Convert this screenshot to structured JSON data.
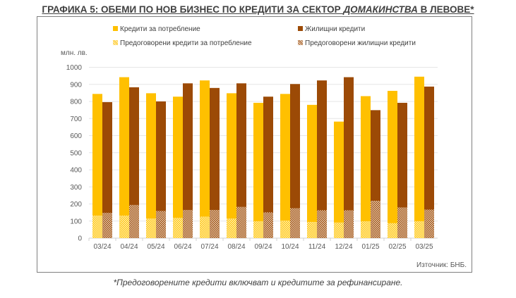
{
  "title_part1": "ГРАФИКА 5: ОБЕМИ ПО НОВ БИЗНЕС ПО КРЕДИТИ ЗА СЕКТОР ",
  "title_italic": "ДОМАКИНСТВА",
  "title_part2": " В ЛЕВОВЕ*",
  "unit": "млн. лв.",
  "source": "Източник: БНБ.",
  "footnote": "*Предоговорените кредити включват и кредитите за рефинансиране.",
  "colors": {
    "consumer": "#FFC000",
    "housing": "#9C4A06",
    "consumer_refin": "#FFE07A",
    "housing_refin": "#C99A72"
  },
  "chart_data": {
    "type": "bar",
    "title": "ОБЕМИ ПО НОВ БИЗНЕС ПО КРЕДИТИ ЗА СЕКТОР ДОМАКИНСТВА В ЛЕВОВЕ",
    "ylabel": "млн. лв.",
    "ylim": [
      0,
      1000
    ],
    "yticks": [
      "0",
      "100",
      "200",
      "300",
      "400",
      "500",
      "600",
      "700",
      "800",
      "900",
      "1000"
    ],
    "grid": true,
    "legend_position": "top",
    "categories": [
      "03/24",
      "04/24",
      "05/24",
      "06/24",
      "07/24",
      "08/24",
      "09/24",
      "10/24",
      "11/24",
      "12/24",
      "01/25",
      "02/25",
      "03/25"
    ],
    "series": [
      {
        "name": "Кредити за потребление",
        "values": [
          844,
          942,
          848,
          828,
          923,
          848,
          792,
          844,
          780,
          682,
          831,
          862,
          945
        ]
      },
      {
        "name": "Жилищни кредити",
        "values": [
          796,
          883,
          800,
          906,
          879,
          906,
          828,
          902,
          923,
          942,
          749,
          792,
          887
        ]
      },
      {
        "name": "Предоговорени кредити за потребление",
        "values": [
          131,
          131,
          114,
          118,
          125,
          114,
          99,
          102,
          94,
          91,
          99,
          87,
          99
        ]
      },
      {
        "name": "Предоговорени жилищни кредити",
        "values": [
          147,
          194,
          158,
          165,
          165,
          182,
          150,
          174,
          163,
          163,
          218,
          179,
          167
        ]
      }
    ]
  }
}
